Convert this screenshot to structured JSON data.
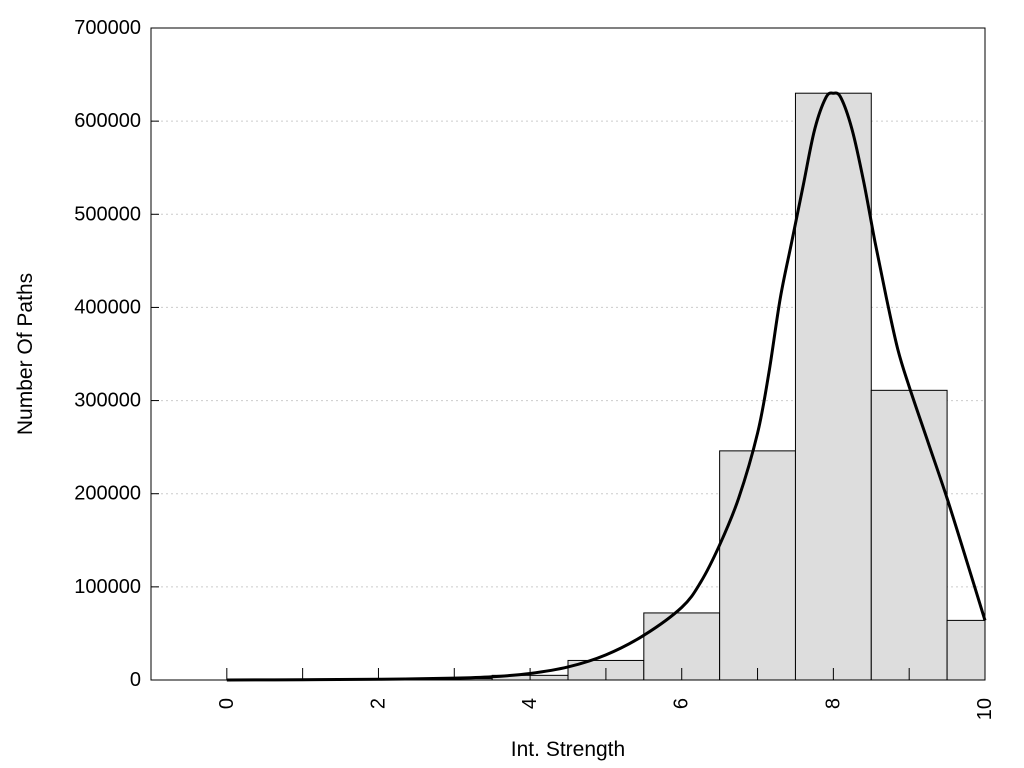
{
  "chart_data": {
    "type": "bar",
    "title": "",
    "xlabel": "Int. Strength",
    "ylabel": "Number Of Paths",
    "xlim": [
      -1,
      10
    ],
    "ylim": [
      0,
      700000
    ],
    "x_ticks": [
      "0",
      "2",
      "4",
      "6",
      "8",
      "10"
    ],
    "y_ticks": [
      "0",
      "100000",
      "200000",
      "300000",
      "400000",
      "500000",
      "600000",
      "700000"
    ],
    "grid": "horizontal-dotted",
    "legend": "none",
    "colors": {
      "bar_fill": "#dddddd",
      "bar_stroke": "#000000",
      "curve": "#000000",
      "grid": "#cccccc"
    },
    "bars": [
      {
        "x": 0,
        "value": 0
      },
      {
        "x": 1,
        "value": 200
      },
      {
        "x": 2,
        "value": 800
      },
      {
        "x": 3,
        "value": 1500
      },
      {
        "x": 4,
        "value": 5000
      },
      {
        "x": 5,
        "value": 21000
      },
      {
        "x": 6,
        "value": 72000
      },
      {
        "x": 7,
        "value": 246000
      },
      {
        "x": 8,
        "value": 630000
      },
      {
        "x": 9,
        "value": 311000
      },
      {
        "x": 10,
        "value": 64000
      }
    ],
    "curve": [
      {
        "x": 0,
        "y": 0
      },
      {
        "x": 1,
        "y": 300
      },
      {
        "x": 2,
        "y": 800
      },
      {
        "x": 3,
        "y": 2000
      },
      {
        "x": 3.5,
        "y": 3500
      },
      {
        "x": 4,
        "y": 7000
      },
      {
        "x": 4.5,
        "y": 14000
      },
      {
        "x": 5,
        "y": 27000
      },
      {
        "x": 5.5,
        "y": 48000
      },
      {
        "x": 6,
        "y": 78000
      },
      {
        "x": 6.25,
        "y": 105000
      },
      {
        "x": 6.5,
        "y": 145000
      },
      {
        "x": 6.75,
        "y": 195000
      },
      {
        "x": 7,
        "y": 265000
      },
      {
        "x": 7.15,
        "y": 330000
      },
      {
        "x": 7.3,
        "y": 410000
      },
      {
        "x": 7.45,
        "y": 470000
      },
      {
        "x": 7.6,
        "y": 530000
      },
      {
        "x": 7.75,
        "y": 590000
      },
      {
        "x": 7.9,
        "y": 625000
      },
      {
        "x": 8,
        "y": 630000
      },
      {
        "x": 8.1,
        "y": 625000
      },
      {
        "x": 8.25,
        "y": 590000
      },
      {
        "x": 8.4,
        "y": 535000
      },
      {
        "x": 8.55,
        "y": 470000
      },
      {
        "x": 8.7,
        "y": 410000
      },
      {
        "x": 8.85,
        "y": 355000
      },
      {
        "x": 9,
        "y": 315000
      },
      {
        "x": 9.25,
        "y": 255000
      },
      {
        "x": 9.5,
        "y": 195000
      },
      {
        "x": 9.75,
        "y": 130000
      },
      {
        "x": 10,
        "y": 64000
      }
    ]
  }
}
